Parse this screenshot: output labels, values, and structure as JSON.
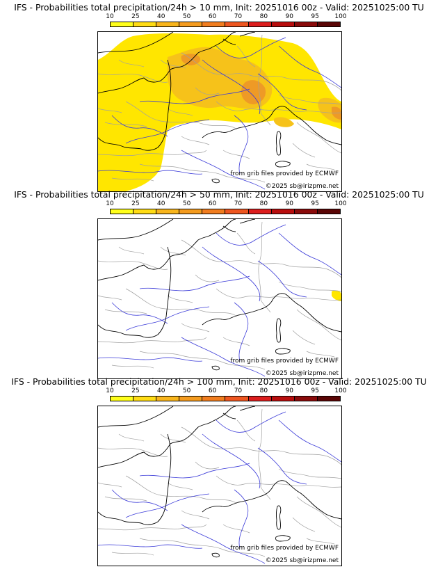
{
  "panels": [
    {
      "title": "IFS - Probabilities total precipitation/24h > 10 mm, Init: 20251016 00z - Valid: 20251025:00 TU",
      "threshold_mm": 10,
      "coverage": "wide"
    },
    {
      "title": "IFS - Probabilities total precipitation/24h > 50 mm, Init: 20251016 00z - Valid: 20251025:00 TU",
      "threshold_mm": 50,
      "coverage": "minimal"
    },
    {
      "title": "IFS - Probabilities total precipitation/24h > 100 mm, Init: 20251016 00z - Valid: 20251025:00 TU",
      "threshold_mm": 100,
      "coverage": "none"
    }
  ],
  "colorbar": {
    "labels": [
      "10",
      "25",
      "40",
      "50",
      "60",
      "70",
      "80",
      "90",
      "95",
      "100"
    ],
    "colors": [
      "#ffff1a",
      "#ffdc14",
      "#f8b51c",
      "#f49b1e",
      "#f17d1f",
      "#ee5620",
      "#dc1d1d",
      "#b80d0d",
      "#8a0a0a",
      "#5a0505"
    ]
  },
  "credits": {
    "source": "from grib files provided by ECMWF",
    "copyright": "©2025 sb@irizpme.net"
  },
  "map_colors": {
    "land_border": "#a0a0a0",
    "coast": "#000000",
    "river": "#3a3ad8",
    "prob_low": "#ffe600",
    "prob_mid": "#f6c21a",
    "prob_high": "#ee9a26"
  }
}
